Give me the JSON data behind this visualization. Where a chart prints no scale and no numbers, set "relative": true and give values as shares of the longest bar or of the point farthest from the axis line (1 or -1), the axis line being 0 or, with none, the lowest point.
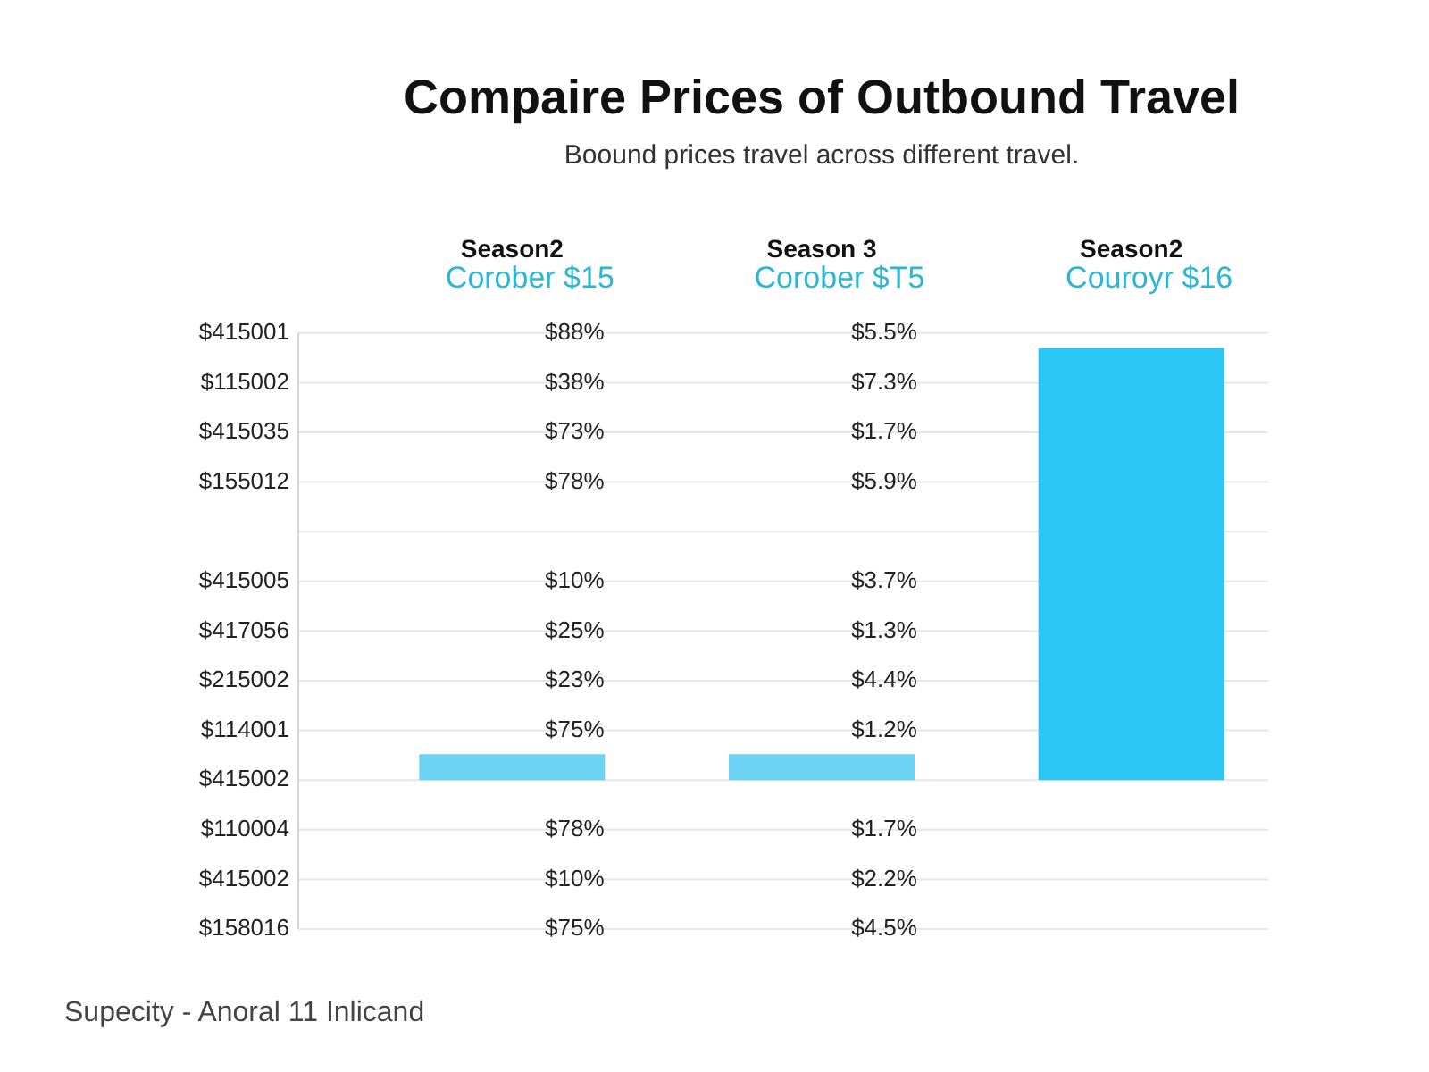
{
  "chart_data": {
    "type": "bar",
    "title": "Compaire Prices of Outbound Travel",
    "subtitle": "Boound prices travel across different travel.",
    "categories": [
      "Season2",
      "Season 3",
      "Season2"
    ],
    "values": [
      0.06,
      0.06,
      1
    ],
    "colors": [
      "#6dd3f5",
      "#6dd3f5",
      "#2cc6f5"
    ],
    "relative": true,
    "grid": "y",
    "annotations": [
      "Supecity - Anoral 11 Inlicand",
      "Corober $15",
      "Corober $T5",
      "Couroyr $16",
      "$415001",
      "$88%",
      "$5.5%",
      "$115002",
      "$38%",
      "$7.3%",
      "$415035",
      "$73%",
      "$1.7%",
      "$155012",
      "$78%",
      "$5.9%",
      "$415005",
      "$10%",
      "$3.7%",
      "$417056",
      "$25%",
      "$1.3%",
      "$215002",
      "$23%",
      "$4.4%",
      "$114001",
      "$75%",
      "$1.2%",
      "$415002",
      "$110004",
      "$78%",
      "$1.7%",
      "$415002",
      "$10%",
      "$2.2%",
      "$158016",
      "$75%",
      "$4.5%"
    ]
  }
}
